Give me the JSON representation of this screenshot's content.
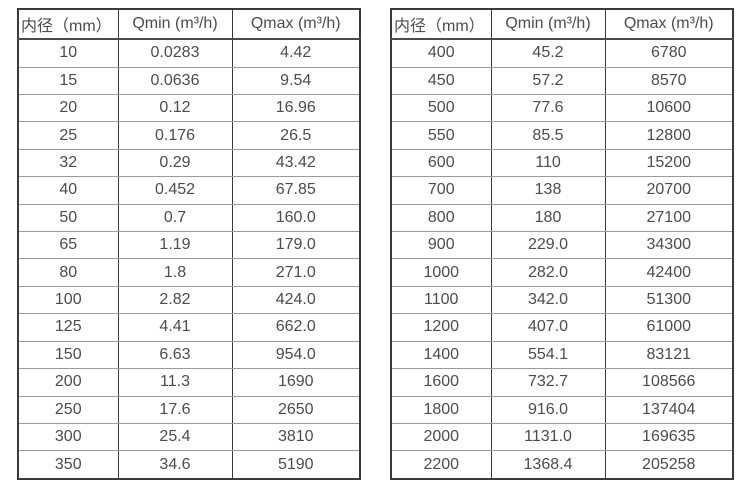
{
  "page": {
    "background": "#ffffff",
    "text_color": "#4c4c4c",
    "border_dark": "#3a3a3a",
    "row_line_color": "#9b9b9b"
  },
  "tables": [
    {
      "name": "flow-range-table-small-diameters",
      "headers": [
        "内径（mm）",
        "Qmin (m³/h)",
        "Qmax (m³/h)"
      ],
      "rows": [
        [
          "10",
          "0.0283",
          "4.42"
        ],
        [
          "15",
          "0.0636",
          "9.54"
        ],
        [
          "20",
          "0.12",
          "16.96"
        ],
        [
          "25",
          "0.176",
          "26.5"
        ],
        [
          "32",
          "0.29",
          "43.42"
        ],
        [
          "40",
          "0.452",
          "67.85"
        ],
        [
          "50",
          "0.7",
          "160.0"
        ],
        [
          "65",
          "1.19",
          "179.0"
        ],
        [
          "80",
          "1.8",
          "271.0"
        ],
        [
          "100",
          "2.82",
          "424.0"
        ],
        [
          "125",
          "4.41",
          "662.0"
        ],
        [
          "150",
          "6.63",
          "954.0"
        ],
        [
          "200",
          "11.3",
          "1690"
        ],
        [
          "250",
          "17.6",
          "2650"
        ],
        [
          "300",
          "25.4",
          "3810"
        ],
        [
          "350",
          "34.6",
          "5190"
        ]
      ]
    },
    {
      "name": "flow-range-table-large-diameters",
      "headers": [
        "内径（mm）",
        "Qmin (m³/h)",
        "Qmax (m³/h)"
      ],
      "rows": [
        [
          "400",
          "45.2",
          "6780"
        ],
        [
          "450",
          "57.2",
          "8570"
        ],
        [
          "500",
          "77.6",
          "10600"
        ],
        [
          "550",
          "85.5",
          "12800"
        ],
        [
          "600",
          "110",
          "15200"
        ],
        [
          "700",
          "138",
          "20700"
        ],
        [
          "800",
          "180",
          "27100"
        ],
        [
          "900",
          "229.0",
          "34300"
        ],
        [
          "1000",
          "282.0",
          "42400"
        ],
        [
          "1100",
          "342.0",
          "51300"
        ],
        [
          "1200",
          "407.0",
          "61000"
        ],
        [
          "1400",
          "554.1",
          "83121"
        ],
        [
          "1600",
          "732.7",
          "108566"
        ],
        [
          "1800",
          "916.0",
          "137404"
        ],
        [
          "2000",
          "1131.0",
          "169635"
        ],
        [
          "2200",
          "1368.4",
          "205258"
        ]
      ]
    }
  ]
}
